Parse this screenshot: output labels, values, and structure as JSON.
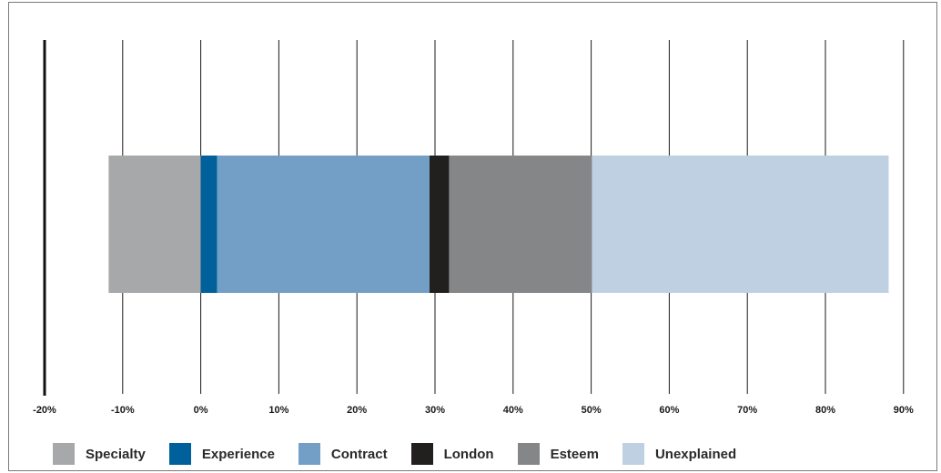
{
  "chart_data": {
    "type": "bar",
    "orientation": "horizontal-stacked",
    "title": "",
    "xlabel": "",
    "ylabel": "",
    "xlim": [
      -20,
      90
    ],
    "x_ticks": [
      -20,
      -10,
      0,
      10,
      20,
      30,
      40,
      50,
      60,
      70,
      80,
      90
    ],
    "tick_labels": [
      "-20%",
      "-10%",
      "0%",
      "10%",
      "20%",
      "30%",
      "40%",
      "50%",
      "60%",
      "70%",
      "80%",
      "90%"
    ],
    "grid": "vertical",
    "legend_placement": "bottom",
    "series": [
      {
        "name": "Specialty",
        "start": -11.8,
        "end": 0,
        "value": -11.8,
        "color": "#a7a8aa"
      },
      {
        "name": "Experience",
        "start": 0,
        "end": 2.1,
        "value": 2.1,
        "color": "#00609c"
      },
      {
        "name": "Contract",
        "start": 2.1,
        "end": 29.3,
        "value": 27.2,
        "color": "#739fc7"
      },
      {
        "name": "London",
        "start": 29.3,
        "end": 31.8,
        "value": 2.5,
        "color": "#221f1f"
      },
      {
        "name": "Esteem",
        "start": 31.8,
        "end": 50.1,
        "value": 18.3,
        "color": "#858688"
      },
      {
        "name": "Unexplained",
        "start": 50.1,
        "end": 88.1,
        "value": 38.0,
        "color": "#c0d0e3"
      }
    ]
  }
}
